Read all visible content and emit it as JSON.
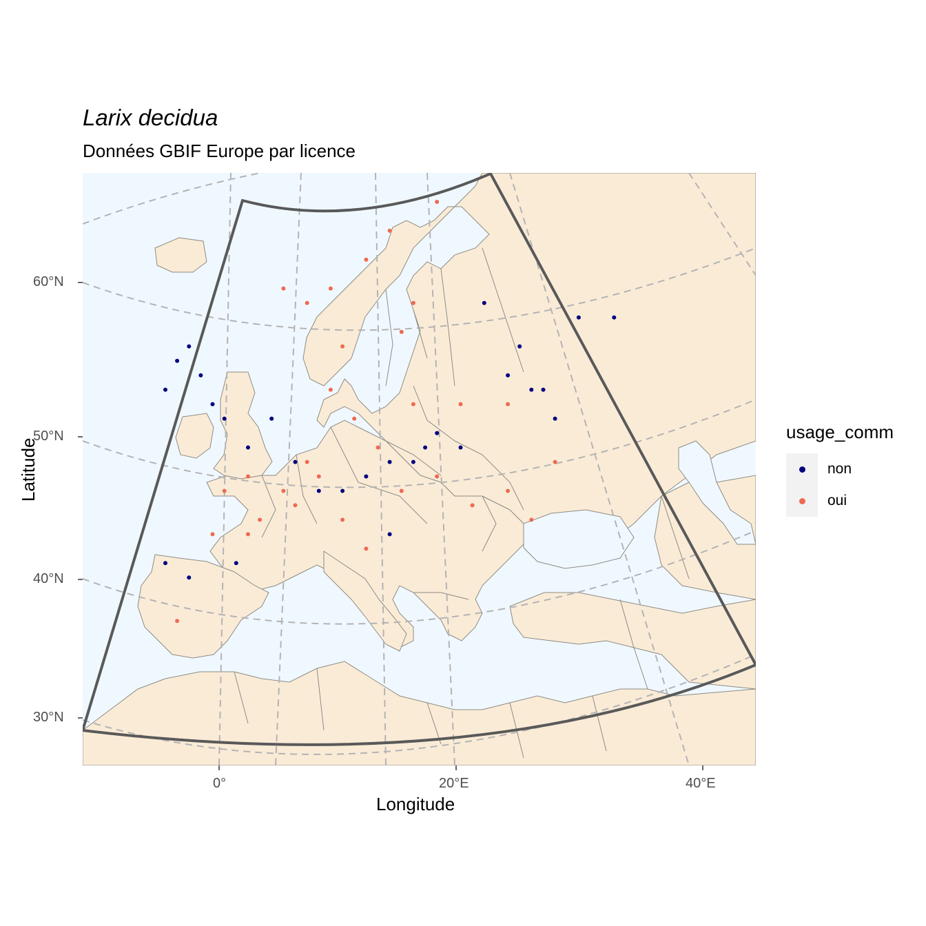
{
  "title": "Larix decidua",
  "subtitle": "Données GBIF Europe par licence",
  "x_axis": {
    "label": "Longitude",
    "ticks": [
      "0°",
      "20°E",
      "40°E"
    ]
  },
  "y_axis": {
    "label": "Latitude",
    "ticks": [
      "60°N",
      "50°N",
      "40°N",
      "30°N"
    ]
  },
  "legend": {
    "title": "usage_comm",
    "entries": [
      {
        "label": "non",
        "color": "#000080"
      },
      {
        "label": "oui",
        "color": "#ee6a50"
      }
    ]
  },
  "colors": {
    "sea": "#f0f8ff",
    "land": "#faebd7",
    "border": "#8b8b83",
    "graticule": "#b3b3b3",
    "extent_frame": "#595959"
  },
  "chart_data": {
    "type": "scatter",
    "projection": "conic",
    "xlim": [
      -12,
      45
    ],
    "ylim": [
      27,
      68
    ],
    "series": [
      {
        "name": "non",
        "points": [
          [
            -4,
            55
          ],
          [
            -3,
            56
          ],
          [
            -2,
            54
          ],
          [
            -1,
            52
          ],
          [
            0,
            51
          ],
          [
            -5,
            53
          ],
          [
            2,
            49
          ],
          [
            4,
            51
          ],
          [
            6,
            48
          ],
          [
            8,
            46
          ],
          [
            10,
            46
          ],
          [
            12,
            47
          ],
          [
            14,
            48
          ],
          [
            16,
            48
          ],
          [
            17,
            49
          ],
          [
            18,
            50
          ],
          [
            20,
            49
          ],
          [
            24,
            54
          ],
          [
            25,
            56
          ],
          [
            27,
            53
          ],
          [
            28,
            51
          ],
          [
            30,
            58
          ],
          [
            33,
            58
          ],
          [
            -3,
            40
          ],
          [
            -5,
            41
          ],
          [
            1,
            41
          ],
          [
            14,
            43
          ],
          [
            22,
            59
          ],
          [
            26,
            53
          ]
        ]
      },
      {
        "name": "oui",
        "points": [
          [
            5,
            60
          ],
          [
            7,
            59
          ],
          [
            9,
            60
          ],
          [
            12,
            62
          ],
          [
            15,
            57
          ],
          [
            16,
            59
          ],
          [
            14,
            64
          ],
          [
            18,
            66
          ],
          [
            10,
            56
          ],
          [
            9,
            53
          ],
          [
            11,
            51
          ],
          [
            13,
            49
          ],
          [
            7,
            48
          ],
          [
            5,
            46
          ],
          [
            2,
            47
          ],
          [
            0,
            46
          ],
          [
            3,
            44
          ],
          [
            6,
            45
          ],
          [
            8,
            47
          ],
          [
            10,
            44
          ],
          [
            12,
            42
          ],
          [
            15,
            46
          ],
          [
            18,
            47
          ],
          [
            21,
            45
          ],
          [
            24,
            46
          ],
          [
            26,
            44
          ],
          [
            2,
            43
          ],
          [
            -1,
            43
          ],
          [
            16,
            52
          ],
          [
            20,
            52
          ],
          [
            24,
            52
          ],
          [
            28,
            48
          ],
          [
            -4,
            37
          ]
        ]
      }
    ]
  }
}
